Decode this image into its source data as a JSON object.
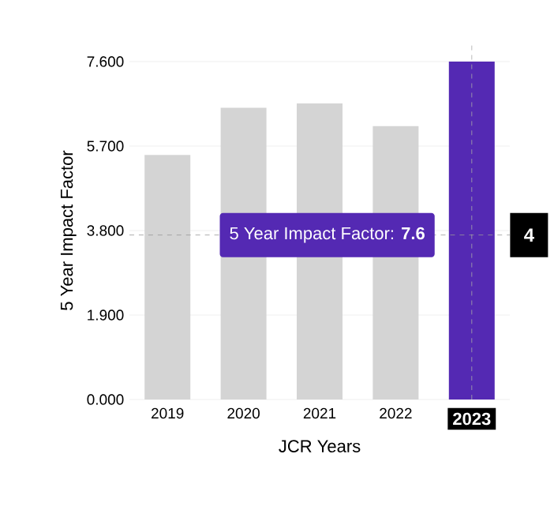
{
  "chart_data": {
    "type": "bar",
    "xlabel": "JCR Years",
    "ylabel": "5 Year Impact Factor",
    "categories": [
      "2019",
      "2020",
      "2021",
      "2022",
      "2023"
    ],
    "values": [
      5.5,
      6.56,
      6.66,
      6.15,
      7.6
    ],
    "colors": [
      "#d4d4d4",
      "#d4d4d4",
      "#d4d4d4",
      "#d4d4d4",
      "#5429b3"
    ],
    "ylim": [
      0,
      7.6
    ],
    "yticks": [
      {
        "value": 0,
        "label": "0.000"
      },
      {
        "value": 1.9,
        "label": "1.900"
      },
      {
        "value": 3.8,
        "label": "3.800"
      },
      {
        "value": 5.7,
        "label": "5.700"
      },
      {
        "value": 7.6,
        "label": "7.600"
      }
    ],
    "grid": "y",
    "ref_lines": [
      {
        "axis": "y",
        "value": 3.7,
        "label": "4",
        "line_style": "dashed",
        "color": "#999999"
      },
      {
        "axis": "x",
        "value": "2023",
        "line_style": "dashed",
        "color": "#aaaaaa"
      }
    ],
    "annotations": [
      "5 Year Impact Factor: **7.6**"
    ]
  }
}
